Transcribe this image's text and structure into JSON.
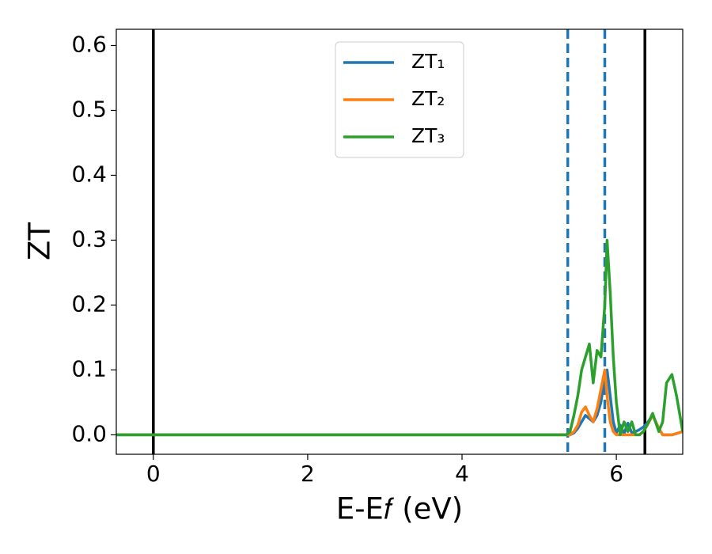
{
  "chart_data": {
    "type": "line",
    "xlabel": "E-E𝑓 (eV)",
    "ylabel": "ZT",
    "xlim": [
      -0.48,
      6.86
    ],
    "ylim": [
      -0.03,
      0.625
    ],
    "xticks": [
      0,
      2,
      4,
      6
    ],
    "yticks": [
      {
        "value": 0,
        "label": "0.0"
      },
      0.1,
      0.2,
      0.3,
      0.4,
      0.5,
      0.6
    ],
    "legend": "upper center",
    "vlines": [
      {
        "x": 0,
        "color": "#000000",
        "style": "solid"
      },
      {
        "x": 6.37,
        "color": "#000000",
        "style": "solid"
      },
      {
        "x": 5.37,
        "color": "#1f77b4",
        "style": "dashed"
      },
      {
        "x": 5.85,
        "color": "#1f77b4",
        "style": "dashed"
      }
    ],
    "x": [
      -0.48,
      5.35,
      5.4,
      5.45,
      5.5,
      5.55,
      5.6,
      5.65,
      5.7,
      5.75,
      5.8,
      5.85,
      5.88,
      5.92,
      5.96,
      6.0,
      6.05,
      6.1,
      6.15,
      6.2,
      6.25,
      6.3,
      6.35,
      6.4,
      6.47,
      6.55,
      6.6,
      6.65,
      6.72,
      6.78,
      6.86
    ],
    "series": [
      {
        "name": "ZT₁",
        "color": "#1f77b4",
        "values": [
          0,
          0,
          0,
          0.003,
          0.01,
          0.02,
          0.03,
          0.025,
          0.02,
          0.03,
          0.05,
          0.09,
          0.1,
          0.06,
          0.02,
          0.003,
          0.015,
          0.002,
          0.018,
          0.003,
          0.005,
          0.008,
          0.012,
          0.018,
          0.03,
          0.01,
          0,
          0,
          0,
          0.002,
          0.005
        ]
      },
      {
        "name": "ZT₂",
        "color": "#ff7f0e",
        "values": [
          0,
          0,
          0,
          0.005,
          0.015,
          0.035,
          0.043,
          0.03,
          0.02,
          0.04,
          0.07,
          0.1,
          0.06,
          0.02,
          0.005,
          0,
          0,
          0,
          0,
          0,
          0,
          0,
          0.005,
          0.015,
          0.03,
          0.01,
          0,
          0,
          0,
          0.002,
          0.005
        ]
      },
      {
        "name": "ZT₃",
        "color": "#2ca02c",
        "values": [
          0,
          0,
          0.005,
          0.03,
          0.06,
          0.1,
          0.12,
          0.14,
          0.08,
          0.13,
          0.12,
          0.2,
          0.3,
          0.22,
          0.12,
          0.05,
          0,
          0.02,
          0.005,
          0.02,
          0,
          0,
          0.005,
          0.015,
          0.033,
          0.005,
          0.02,
          0.08,
          0.093,
          0.06,
          0.005
        ]
      }
    ]
  }
}
